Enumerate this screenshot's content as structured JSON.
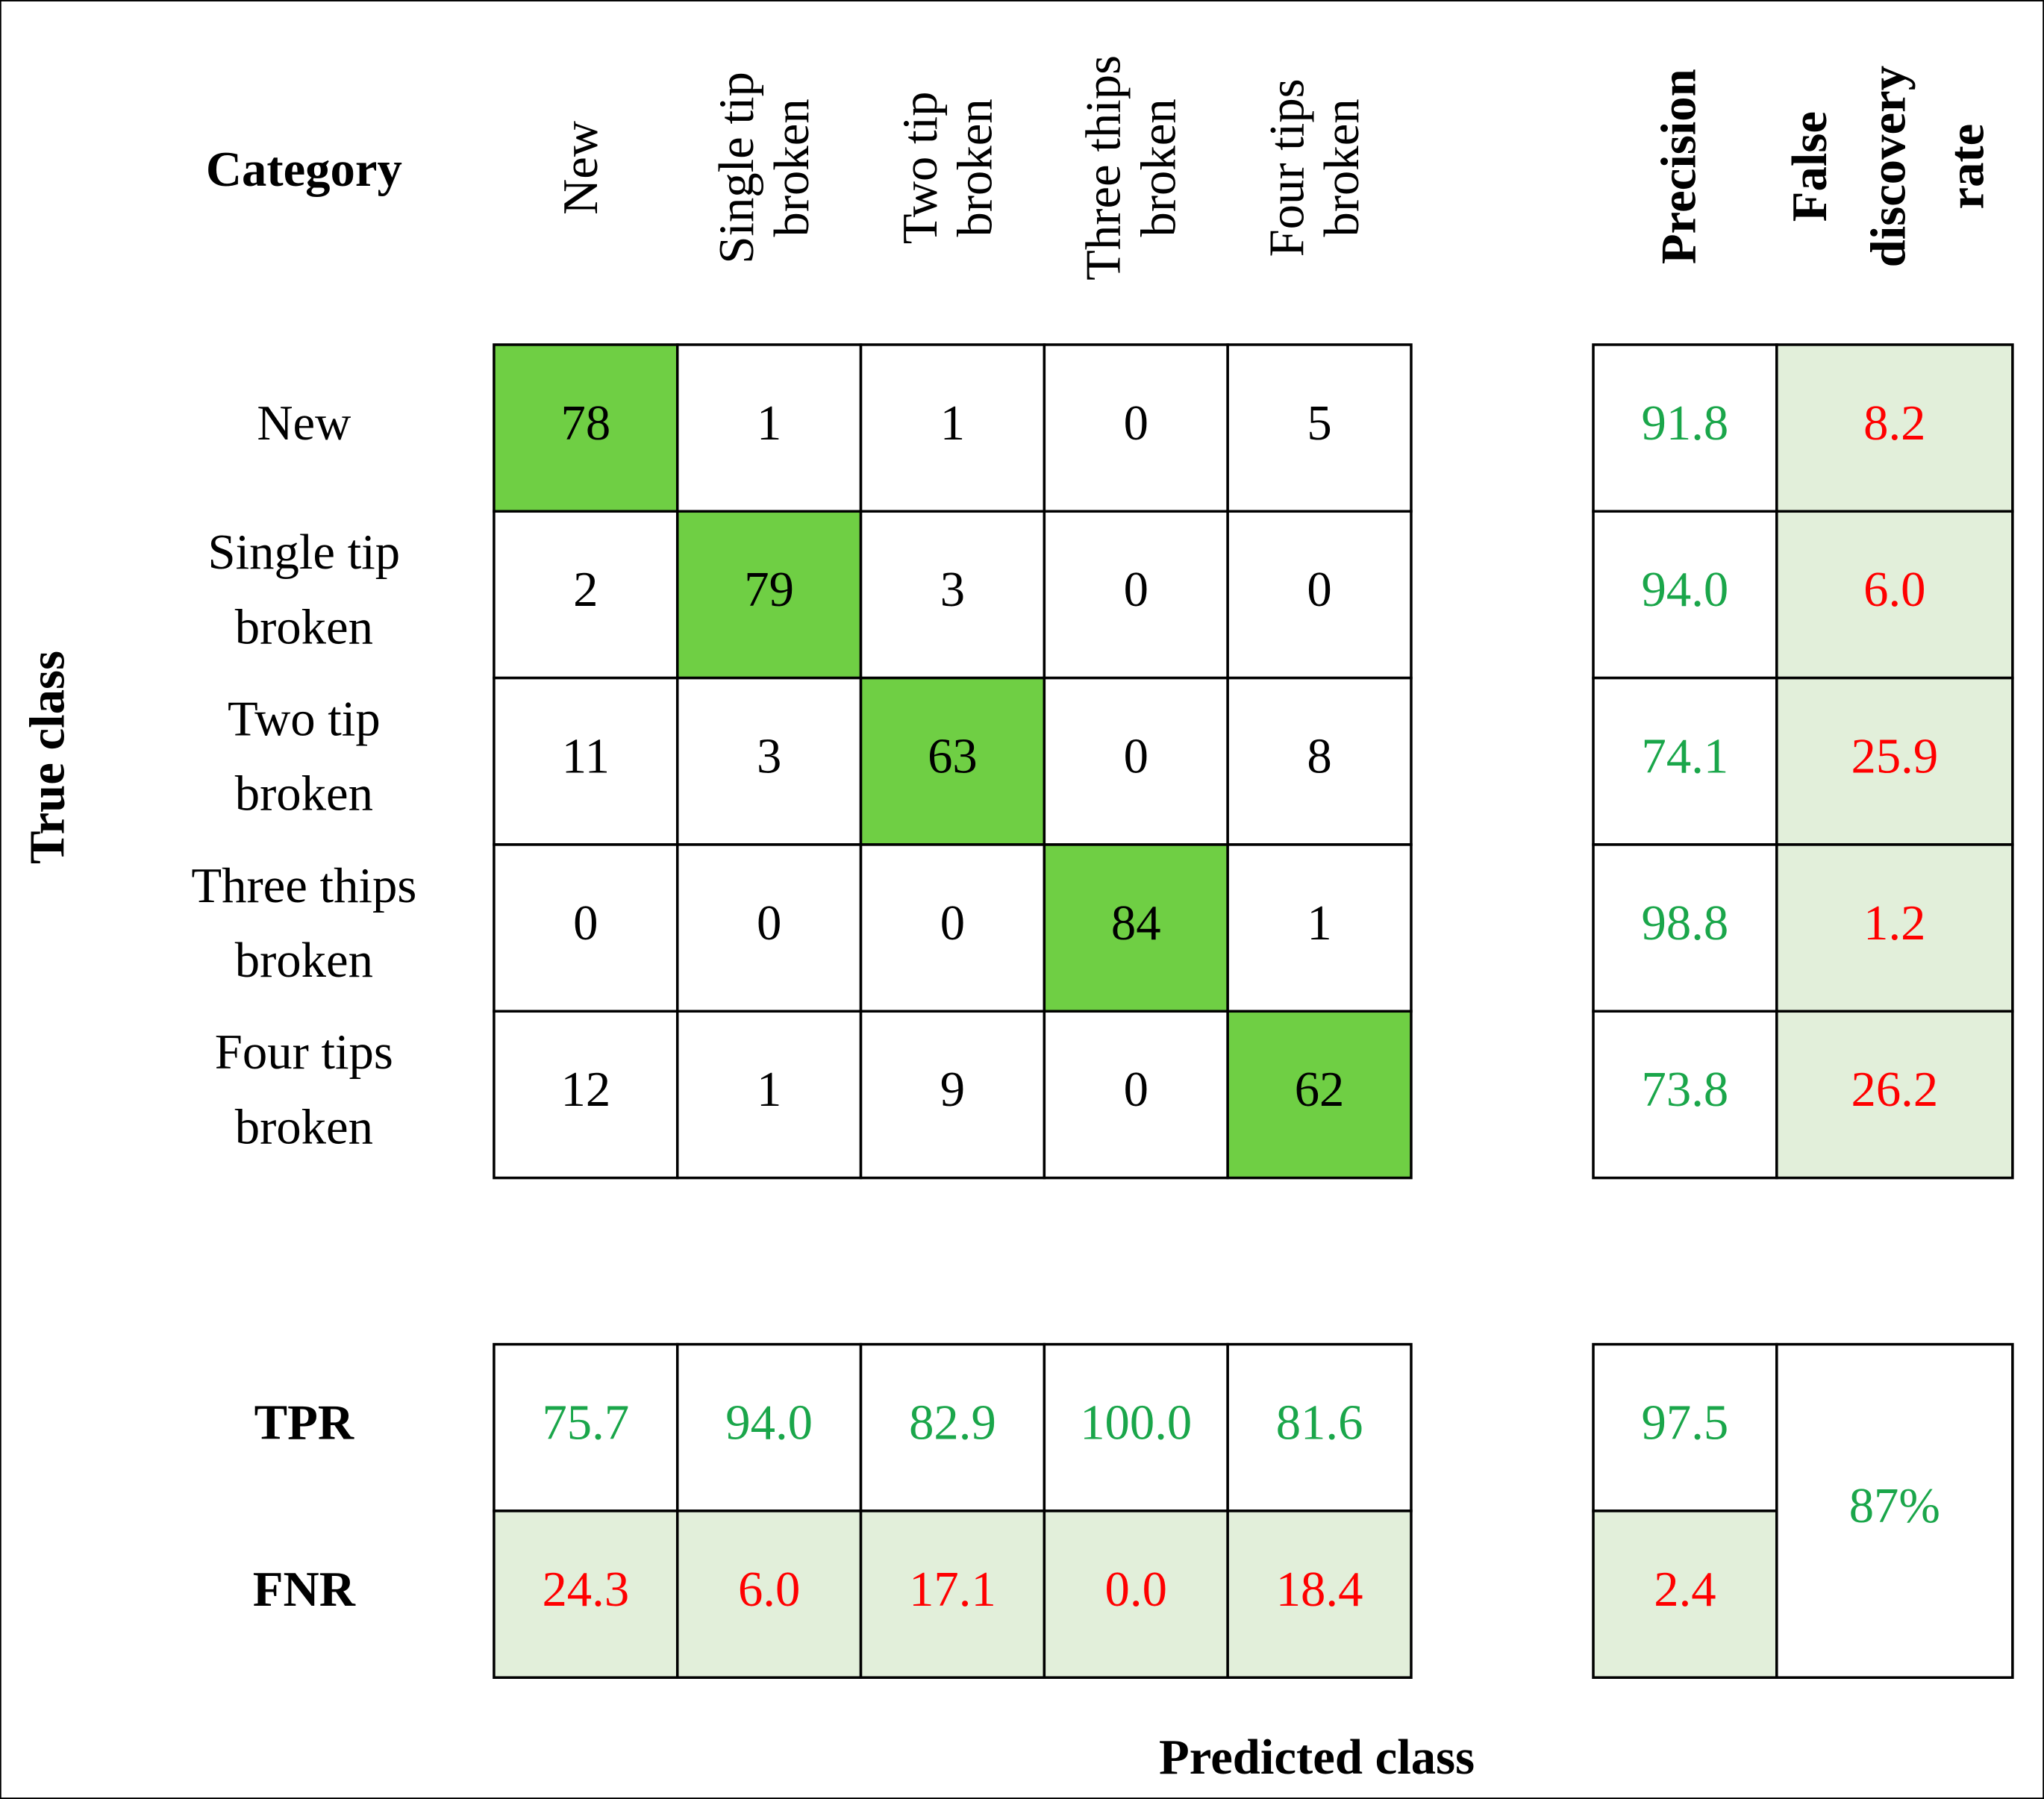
{
  "header": {
    "category": "Category",
    "columns": [
      [
        "New"
      ],
      [
        "Single tip",
        "broken"
      ],
      [
        "Two tip",
        "broken"
      ],
      [
        "Three thips",
        "broken"
      ],
      [
        "Four tips",
        "broken"
      ]
    ],
    "precision": "Precision",
    "fdr": [
      "False",
      "discovery",
      "rate"
    ]
  },
  "axis": {
    "true": "True class",
    "predicted": "Predicted class"
  },
  "rows": [
    {
      "label": [
        "New"
      ],
      "counts": [
        78,
        1,
        1,
        0,
        5
      ],
      "precision": "91.8",
      "fdr": "8.2"
    },
    {
      "label": [
        "Single tip",
        "broken"
      ],
      "counts": [
        2,
        79,
        3,
        0,
        0
      ],
      "precision": "94.0",
      "fdr": "6.0"
    },
    {
      "label": [
        "Two tip",
        "broken"
      ],
      "counts": [
        11,
        3,
        63,
        0,
        8
      ],
      "precision": "74.1",
      "fdr": "25.9"
    },
    {
      "label": [
        "Three thips",
        "broken"
      ],
      "counts": [
        0,
        0,
        0,
        84,
        1
      ],
      "precision": "98.8",
      "fdr": "1.2"
    },
    {
      "label": [
        "Four tips",
        "broken"
      ],
      "counts": [
        12,
        1,
        9,
        0,
        62
      ],
      "precision": "73.8",
      "fdr": "26.2"
    }
  ],
  "tpr": {
    "label": "TPR",
    "values": [
      "75.7",
      "94.0",
      "82.9",
      "100.0",
      "81.6"
    ],
    "overall": "97.5"
  },
  "fnr": {
    "label": "FNR",
    "values": [
      "24.3",
      "6.0",
      "17.1",
      "0.0",
      "18.4"
    ],
    "overall": "2.4"
  },
  "accuracy": "87%"
}
